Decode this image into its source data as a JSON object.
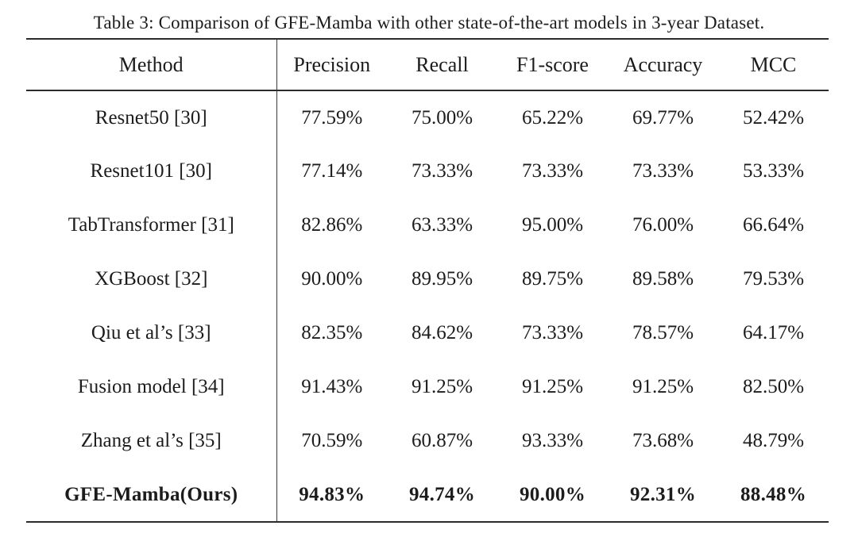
{
  "caption": "Table 3: Comparison of GFE-Mamba with other state-of-the-art models in 3-year Dataset.",
  "columns": [
    "Method",
    "Precision",
    "Recall",
    "F1-score",
    "Accuracy",
    "MCC"
  ],
  "rows": [
    {
      "label": "Resnet50 [30]",
      "values": [
        "77.59%",
        "75.00%",
        "65.22%",
        "69.77%",
        "52.42%"
      ],
      "bold": false
    },
    {
      "label": "Resnet101 [30]",
      "values": [
        "77.14%",
        "73.33%",
        "73.33%",
        "73.33%",
        "53.33%"
      ],
      "bold": false
    },
    {
      "label": "TabTransformer [31]",
      "values": [
        "82.86%",
        "63.33%",
        "95.00%",
        "76.00%",
        "66.64%"
      ],
      "bold": false
    },
    {
      "label": "XGBoost [32]",
      "values": [
        "90.00%",
        "89.95%",
        "89.75%",
        "89.58%",
        "79.53%"
      ],
      "bold": false
    },
    {
      "label": "Qiu et al’s [33]",
      "values": [
        "82.35%",
        "84.62%",
        "73.33%",
        "78.57%",
        "64.17%"
      ],
      "bold": false
    },
    {
      "label": "Fusion model [34]",
      "values": [
        "91.43%",
        "91.25%",
        "91.25%",
        "91.25%",
        "82.50%"
      ],
      "bold": false
    },
    {
      "label": "Zhang et al’s [35]",
      "values": [
        "70.59%",
        "60.87%",
        "93.33%",
        "73.68%",
        "48.79%"
      ],
      "bold": false
    },
    {
      "label": "GFE-Mamba(Ours)",
      "values": [
        "94.83%",
        "94.74%",
        "90.00%",
        "92.31%",
        "88.48%"
      ],
      "bold": true
    }
  ],
  "colors": {
    "text": "#1c1c1c",
    "rule": "#2b2b2b",
    "background": "#ffffff"
  }
}
